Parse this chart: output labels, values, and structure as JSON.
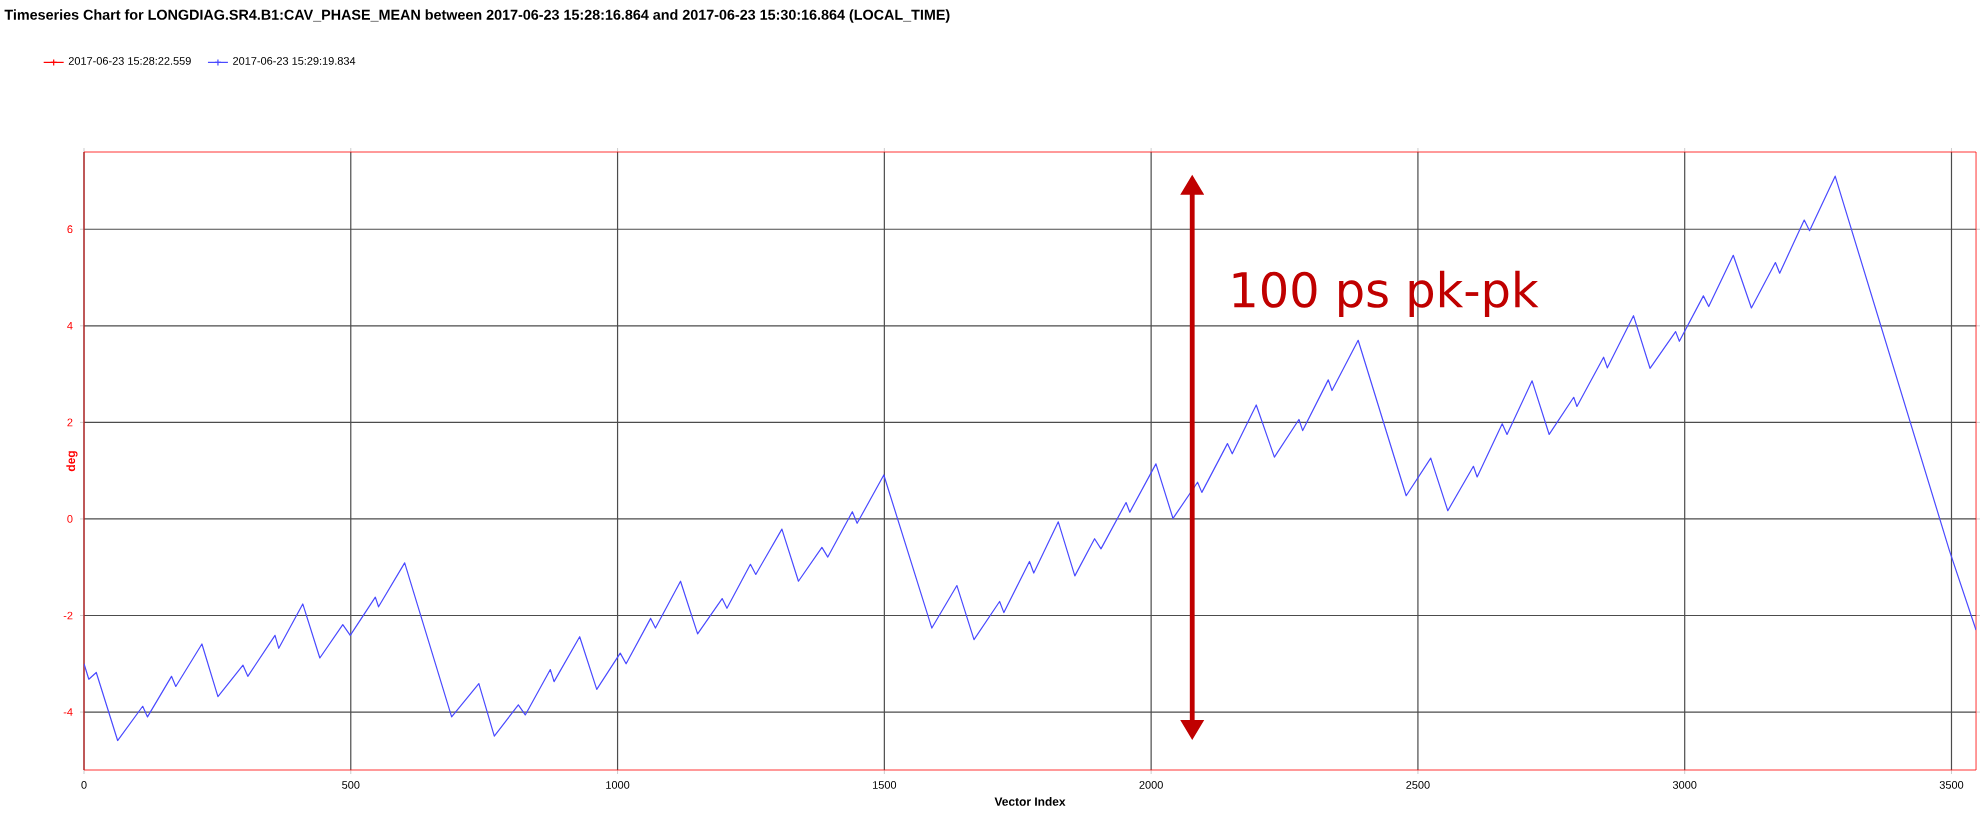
{
  "chart_data": {
    "type": "line",
    "title": "Timeseries Chart for LONGDIAG.SR4.B1:CAV_PHASE_MEAN between 2017-06-23 15:28:16.864 and 2017-06-23 15:30:16.864 (LOCAL_TIME)",
    "xlabel": "Vector Index",
    "ylabel": "deg",
    "annotations": [
      "100 ps pk-pk"
    ],
    "xlim": [
      0,
      3546
    ],
    "ylim": [
      -5.2,
      7.6
    ],
    "xticks": [
      0,
      500,
      1000,
      1500,
      2000,
      2500,
      3000,
      3500
    ],
    "yticks": [
      -4,
      -2,
      0,
      2,
      4,
      6
    ],
    "grid": true,
    "legend": "top left",
    "series": [
      {
        "name": "2017-06-23 15:28:22.559",
        "color": "#ff0000"
      },
      {
        "name": "2017-06-23 15:29:19.834",
        "color": "#4a4aff",
        "x": [
          0,
          9,
          23,
          63,
          110,
          119,
          164,
          172,
          221,
          251,
          298,
          307,
          358,
          365,
          410,
          442,
          485,
          499,
          546,
          552,
          601,
          689,
          740,
          769,
          814,
          827,
          874,
          881,
          929,
          961,
          1005,
          1016,
          1062,
          1071,
          1118,
          1150,
          1196,
          1205,
          1249,
          1259,
          1308,
          1339,
          1383,
          1394,
          1440,
          1449,
          1499,
          1589,
          1636,
          1668,
          1716,
          1724,
          1772,
          1780,
          1826,
          1857,
          1894,
          1906,
          1953,
          1960,
          2009,
          2041,
          2087,
          2095,
          2143,
          2152,
          2197,
          2231,
          2277,
          2284,
          2332,
          2339,
          2388,
          2478,
          2524,
          2556,
          2604,
          2611,
          2658,
          2667,
          2714,
          2746,
          2792,
          2798,
          2848,
          2855,
          2904,
          2935,
          2983,
          2990,
          3035,
          3045,
          3091,
          3125,
          3170,
          3178,
          3224,
          3234,
          3282,
          3496,
          3546
        ],
        "values": [
          -3.0,
          -3.32,
          -3.18,
          -4.59,
          -3.88,
          -4.1,
          -3.26,
          -3.47,
          -2.59,
          -3.68,
          -3.03,
          -3.26,
          -2.41,
          -2.68,
          -1.76,
          -2.88,
          -2.19,
          -2.41,
          -1.62,
          -1.82,
          -0.91,
          -4.1,
          -3.41,
          -4.5,
          -3.85,
          -4.06,
          -3.12,
          -3.37,
          -2.44,
          -3.53,
          -2.78,
          -3.0,
          -2.06,
          -2.26,
          -1.29,
          -2.38,
          -1.65,
          -1.85,
          -0.94,
          -1.15,
          -0.21,
          -1.29,
          -0.59,
          -0.79,
          0.15,
          -0.09,
          0.91,
          -2.26,
          -1.38,
          -2.5,
          -1.71,
          -1.94,
          -0.88,
          -1.12,
          -0.06,
          -1.18,
          -0.41,
          -0.62,
          0.34,
          0.14,
          1.14,
          0.01,
          0.76,
          0.55,
          1.56,
          1.35,
          2.36,
          1.28,
          2.06,
          1.83,
          2.88,
          2.66,
          3.7,
          0.48,
          1.26,
          0.17,
          1.09,
          0.87,
          1.97,
          1.75,
          2.86,
          1.75,
          2.52,
          2.33,
          3.35,
          3.13,
          4.21,
          3.12,
          3.88,
          3.68,
          4.62,
          4.4,
          5.46,
          4.37,
          5.31,
          5.09,
          6.19,
          5.97,
          7.1,
          -0.65,
          -2.3
        ]
      }
    ]
  }
}
